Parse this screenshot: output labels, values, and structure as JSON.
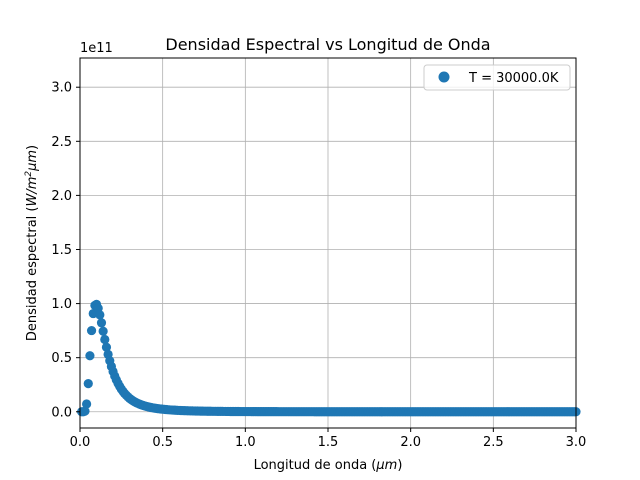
{
  "chart_data": {
    "type": "scatter",
    "title": "Densidad Espectral vs Longitud de Onda",
    "xlabel_main": "Longitud de onda (",
    "xlabel_unit": "μm",
    "xlabel_close": ")",
    "ylabel_main": "Densidad espectral (",
    "ylabel_unit": "W/m",
    "ylabel_sup": "2",
    "ylabel_unit2": "μm",
    "ylabel_close": ")",
    "offset_text": "1e11",
    "xlim": [
      0,
      3.0
    ],
    "ylim": [
      -0.15,
      3.27
    ],
    "grid": true,
    "legend_position": "top-right",
    "xticks": [
      0.0,
      0.5,
      1.0,
      1.5,
      2.0,
      2.5,
      3.0
    ],
    "xtick_labels": [
      "0.0",
      "0.5",
      "1.0",
      "1.5",
      "2.0",
      "2.5",
      "3.0"
    ],
    "yticks": [
      0.0,
      0.5,
      1.0,
      1.5,
      2.0,
      2.5,
      3.0
    ],
    "ytick_labels": [
      "0.0",
      "0.5",
      "1.0",
      "1.5",
      "2.0",
      "2.5",
      "3.0"
    ],
    "series": [
      {
        "name": "T = 30000.0K",
        "color": "#1f77b4",
        "temperature_K": 30000.0,
        "x_start": 0.01,
        "x_end": 3.0,
        "x_step": 0.01
      }
    ]
  }
}
